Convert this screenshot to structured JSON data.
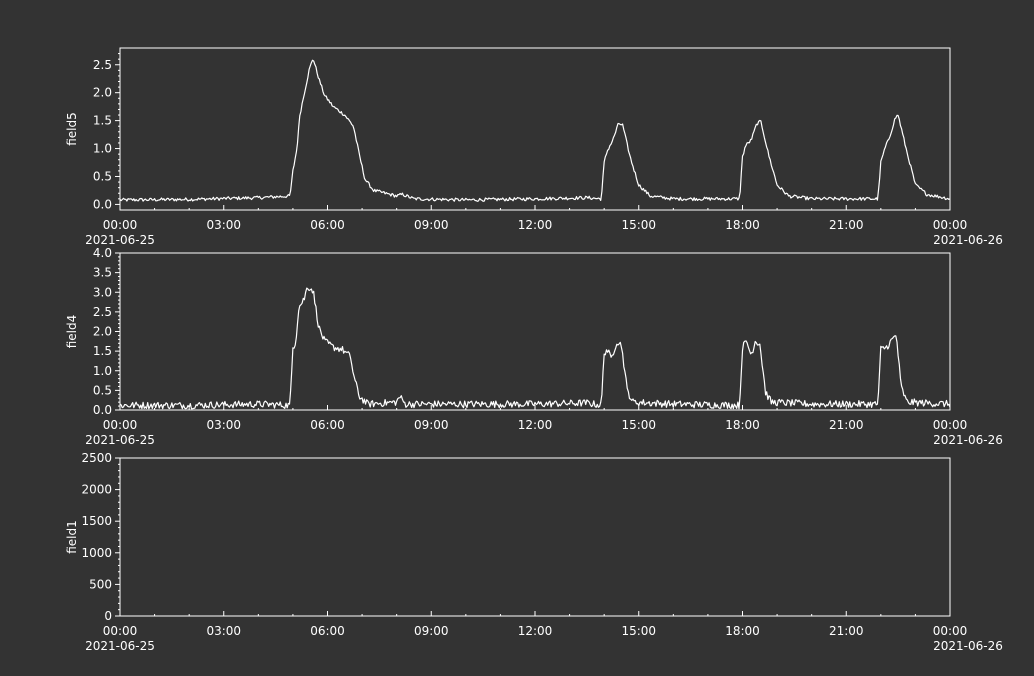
{
  "figure": {
    "background": "#333333",
    "foreground": "#ffffff"
  },
  "chart_data": [
    {
      "type": "line",
      "ylabel": "field5",
      "ylim": [
        -0.1,
        2.8
      ],
      "yticks": [
        {
          "v": 0.0,
          "label": "0.0"
        },
        {
          "v": 0.5,
          "label": "0.5"
        },
        {
          "v": 1.0,
          "label": "1.0"
        },
        {
          "v": 1.5,
          "label": "1.5"
        },
        {
          "v": 2.0,
          "label": "2.0"
        },
        {
          "v": 2.5,
          "label": "2.5"
        }
      ],
      "yminor": [
        0.1,
        0.2,
        0.3,
        0.4,
        0.6,
        0.7,
        0.8,
        0.9,
        1.1,
        1.2,
        1.3,
        1.4,
        1.6,
        1.7,
        1.8,
        1.9,
        2.1,
        2.2,
        2.3,
        2.4,
        2.6,
        2.7
      ],
      "xlim": [
        "2021-06-25 00:00",
        "2021-06-26 00:00"
      ],
      "xticks": [
        {
          "t": "2021-06-25 00:00",
          "label": "00:00",
          "date": "2021-06-25"
        },
        {
          "t": "2021-06-25 03:00",
          "label": "03:00"
        },
        {
          "t": "2021-06-25 06:00",
          "label": "06:00"
        },
        {
          "t": "2021-06-25 09:00",
          "label": "09:00"
        },
        {
          "t": "2021-06-25 12:00",
          "label": "12:00"
        },
        {
          "t": "2021-06-25 15:00",
          "label": "15:00"
        },
        {
          "t": "2021-06-25 18:00",
          "label": "18:00"
        },
        {
          "t": "2021-06-25 21:00",
          "label": "21:00"
        },
        {
          "t": "2021-06-26 00:00",
          "label": "00:00",
          "date": "2021-06-26"
        }
      ],
      "series": [
        {
          "color": "#ffffff",
          "noise": 0.03,
          "points": [
            [
              "2021-06-25 00:00",
              0.08
            ],
            [
              "2021-06-25 02:00",
              0.09
            ],
            [
              "2021-06-25 04:00",
              0.12
            ],
            [
              "2021-06-25 04:55",
              0.15
            ],
            [
              "2021-06-25 05:00",
              0.6
            ],
            [
              "2021-06-25 05:07",
              1.0
            ],
            [
              "2021-06-25 05:12",
              1.6
            ],
            [
              "2021-06-25 05:20",
              2.0
            ],
            [
              "2021-06-25 05:28",
              2.4
            ],
            [
              "2021-06-25 05:35",
              2.62
            ],
            [
              "2021-06-25 05:45",
              2.25
            ],
            [
              "2021-06-25 05:55",
              1.95
            ],
            [
              "2021-06-25 06:10",
              1.75
            ],
            [
              "2021-06-25 06:30",
              1.6
            ],
            [
              "2021-06-25 06:45",
              1.4
            ],
            [
              "2021-06-25 06:55",
              0.9
            ],
            [
              "2021-06-25 07:05",
              0.45
            ],
            [
              "2021-06-25 07:20",
              0.25
            ],
            [
              "2021-06-25 08:00",
              0.15
            ],
            [
              "2021-06-25 08:10",
              0.18
            ],
            [
              "2021-06-25 08:30",
              0.1
            ],
            [
              "2021-06-25 10:00",
              0.08
            ],
            [
              "2021-06-25 12:00",
              0.1
            ],
            [
              "2021-06-25 13:30",
              0.12
            ],
            [
              "2021-06-25 13:55",
              0.1
            ],
            [
              "2021-06-25 14:00",
              0.75
            ],
            [
              "2021-06-25 14:05",
              0.95
            ],
            [
              "2021-06-25 14:15",
              1.15
            ],
            [
              "2021-06-25 14:25",
              1.45
            ],
            [
              "2021-06-25 14:32",
              1.42
            ],
            [
              "2021-06-25 14:45",
              0.85
            ],
            [
              "2021-06-25 15:00",
              0.35
            ],
            [
              "2021-06-25 15:20",
              0.15
            ],
            [
              "2021-06-25 16:00",
              0.1
            ],
            [
              "2021-06-25 17:30",
              0.1
            ],
            [
              "2021-06-25 17:55",
              0.1
            ],
            [
              "2021-06-25 18:00",
              0.85
            ],
            [
              "2021-06-25 18:05",
              1.05
            ],
            [
              "2021-06-25 18:15",
              1.15
            ],
            [
              "2021-06-25 18:25",
              1.45
            ],
            [
              "2021-06-25 18:32",
              1.48
            ],
            [
              "2021-06-25 18:45",
              0.9
            ],
            [
              "2021-06-25 19:00",
              0.35
            ],
            [
              "2021-06-25 19:20",
              0.15
            ],
            [
              "2021-06-25 20:00",
              0.1
            ],
            [
              "2021-06-25 21:30",
              0.1
            ],
            [
              "2021-06-25 21:55",
              0.1
            ],
            [
              "2021-06-25 22:00",
              0.75
            ],
            [
              "2021-06-25 22:07",
              1.0
            ],
            [
              "2021-06-25 22:15",
              1.2
            ],
            [
              "2021-06-25 22:25",
              1.55
            ],
            [
              "2021-06-25 22:30",
              1.6
            ],
            [
              "2021-06-25 22:45",
              0.95
            ],
            [
              "2021-06-25 23:00",
              0.35
            ],
            [
              "2021-06-25 23:20",
              0.18
            ],
            [
              "2021-06-26 00:00",
              0.1
            ]
          ]
        }
      ]
    },
    {
      "type": "line",
      "ylabel": "field4",
      "ylim": [
        0,
        4.0
      ],
      "yticks": [
        {
          "v": 0.0,
          "label": "0.0"
        },
        {
          "v": 0.5,
          "label": "0.5"
        },
        {
          "v": 1.0,
          "label": "1.0"
        },
        {
          "v": 1.5,
          "label": "1.5"
        },
        {
          "v": 2.0,
          "label": "2.0"
        },
        {
          "v": 2.5,
          "label": "2.5"
        },
        {
          "v": 3.0,
          "label": "3.0"
        },
        {
          "v": 3.5,
          "label": "3.5"
        },
        {
          "v": 4.0,
          "label": "4.0"
        }
      ],
      "yminor": [
        0.1,
        0.2,
        0.3,
        0.4,
        0.6,
        0.7,
        0.8,
        0.9,
        1.1,
        1.2,
        1.3,
        1.4,
        1.6,
        1.7,
        1.8,
        1.9,
        2.1,
        2.2,
        2.3,
        2.4,
        2.6,
        2.7,
        2.8,
        2.9,
        3.1,
        3.2,
        3.3,
        3.4,
        3.6,
        3.7,
        3.8,
        3.9
      ],
      "xlim": [
        "2021-06-25 00:00",
        "2021-06-26 00:00"
      ],
      "xticks": [
        {
          "t": "2021-06-25 00:00",
          "label": "00:00",
          "date": "2021-06-25"
        },
        {
          "t": "2021-06-25 03:00",
          "label": "03:00"
        },
        {
          "t": "2021-06-25 06:00",
          "label": "06:00"
        },
        {
          "t": "2021-06-25 09:00",
          "label": "09:00"
        },
        {
          "t": "2021-06-25 12:00",
          "label": "12:00"
        },
        {
          "t": "2021-06-25 15:00",
          "label": "15:00"
        },
        {
          "t": "2021-06-25 18:00",
          "label": "18:00"
        },
        {
          "t": "2021-06-25 21:00",
          "label": "21:00"
        },
        {
          "t": "2021-06-26 00:00",
          "label": "00:00",
          "date": "2021-06-26"
        }
      ],
      "series": [
        {
          "color": "#ffffff",
          "noise": 0.09,
          "points": [
            [
              "2021-06-25 00:00",
              0.12
            ],
            [
              "2021-06-25 02:00",
              0.12
            ],
            [
              "2021-06-25 04:00",
              0.15
            ],
            [
              "2021-06-25 04:55",
              0.12
            ],
            [
              "2021-06-25 05:00",
              1.6
            ],
            [
              "2021-06-25 05:05",
              1.75
            ],
            [
              "2021-06-25 05:10",
              2.6
            ],
            [
              "2021-06-25 05:20",
              2.85
            ],
            [
              "2021-06-25 05:25",
              3.15
            ],
            [
              "2021-06-25 05:35",
              3.05
            ],
            [
              "2021-06-25 05:45",
              2.1
            ],
            [
              "2021-06-25 05:55",
              1.75
            ],
            [
              "2021-06-25 06:10",
              1.6
            ],
            [
              "2021-06-25 06:25",
              1.55
            ],
            [
              "2021-06-25 06:40",
              1.35
            ],
            [
              "2021-06-25 06:45",
              0.9
            ],
            [
              "2021-06-25 06:55",
              0.35
            ],
            [
              "2021-06-25 07:10",
              0.15
            ],
            [
              "2021-06-25 08:00",
              0.2
            ],
            [
              "2021-06-25 08:05",
              0.35
            ],
            [
              "2021-06-25 08:15",
              0.15
            ],
            [
              "2021-06-25 10:00",
              0.15
            ],
            [
              "2021-06-25 12:00",
              0.15
            ],
            [
              "2021-06-25 13:30",
              0.18
            ],
            [
              "2021-06-25 13:55",
              0.12
            ],
            [
              "2021-06-25 14:00",
              1.45
            ],
            [
              "2021-06-25 14:05",
              1.55
            ],
            [
              "2021-06-25 14:12",
              1.3
            ],
            [
              "2021-06-25 14:22",
              1.75
            ],
            [
              "2021-06-25 14:30",
              1.65
            ],
            [
              "2021-06-25 14:40",
              0.5
            ],
            [
              "2021-06-25 14:50",
              0.2
            ],
            [
              "2021-06-25 16:00",
              0.15
            ],
            [
              "2021-06-25 17:55",
              0.12
            ],
            [
              "2021-06-25 18:00",
              1.6
            ],
            [
              "2021-06-25 18:07",
              1.75
            ],
            [
              "2021-06-25 18:15",
              1.4
            ],
            [
              "2021-06-25 18:22",
              1.75
            ],
            [
              "2021-06-25 18:30",
              1.7
            ],
            [
              "2021-06-25 18:40",
              0.45
            ],
            [
              "2021-06-25 18:50",
              0.2
            ],
            [
              "2021-06-25 20:00",
              0.15
            ],
            [
              "2021-06-25 21:55",
              0.15
            ],
            [
              "2021-06-25 22:00",
              1.55
            ],
            [
              "2021-06-25 22:10",
              1.6
            ],
            [
              "2021-06-25 22:20",
              1.8
            ],
            [
              "2021-06-25 22:27",
              1.9
            ],
            [
              "2021-06-25 22:35",
              0.6
            ],
            [
              "2021-06-25 22:45",
              0.2
            ],
            [
              "2021-06-26 00:00",
              0.15
            ]
          ]
        }
      ]
    },
    {
      "type": "line",
      "ylabel": "field1",
      "ylim": [
        0,
        2500
      ],
      "yticks": [
        {
          "v": 0,
          "label": "0"
        },
        {
          "v": 500,
          "label": "500"
        },
        {
          "v": 1000,
          "label": "1000"
        },
        {
          "v": 1500,
          "label": "1500"
        },
        {
          "v": 2000,
          "label": "2000"
        },
        {
          "v": 2500,
          "label": "2500"
        }
      ],
      "yminor": [
        100,
        200,
        300,
        400,
        600,
        700,
        800,
        900,
        1100,
        1200,
        1300,
        1400,
        1600,
        1700,
        1800,
        1900,
        2100,
        2200,
        2300,
        2400
      ],
      "xlim": [
        "2021-06-25 00:00",
        "2021-06-26 00:00"
      ],
      "xticks": [
        {
          "t": "2021-06-25 00:00",
          "label": "00:00",
          "date": "2021-06-25"
        },
        {
          "t": "2021-06-25 03:00",
          "label": "03:00"
        },
        {
          "t": "2021-06-25 06:00",
          "label": "06:00"
        },
        {
          "t": "2021-06-25 09:00",
          "label": "09:00"
        },
        {
          "t": "2021-06-25 12:00",
          "label": "12:00"
        },
        {
          "t": "2021-06-25 15:00",
          "label": "15:00"
        },
        {
          "t": "2021-06-25 18:00",
          "label": "18:00"
        },
        {
          "t": "2021-06-25 21:00",
          "label": "21:00"
        },
        {
          "t": "2021-06-26 00:00",
          "label": "00:00",
          "date": "2021-06-26"
        }
      ],
      "series": []
    }
  ]
}
